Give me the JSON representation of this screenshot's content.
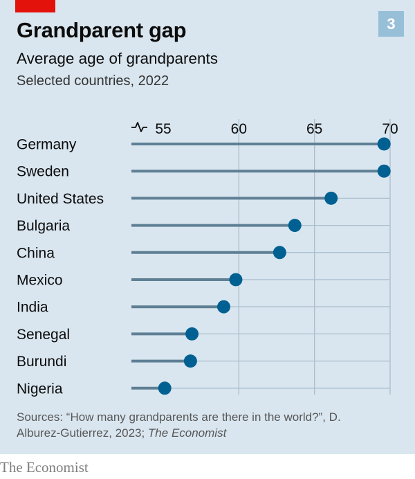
{
  "header": {
    "chart_number": "3"
  },
  "chart_data": {
    "type": "dot",
    "title": "Grandparent gap",
    "subtitle": "Average age of grandparents",
    "subsubtitle": "Selected countries, 2022",
    "categories": [
      "Germany",
      "Sweden",
      "United States",
      "Bulgaria",
      "China",
      "Mexico",
      "India",
      "Senegal",
      "Burundi",
      "Nigeria"
    ],
    "values": [
      69.6,
      69.6,
      66.1,
      63.7,
      62.7,
      59.8,
      59.0,
      56.9,
      56.8,
      55.1
    ],
    "xticks": [
      55,
      60,
      65,
      70
    ],
    "xlim": [
      53,
      70
    ],
    "grid": true,
    "axis_break": true,
    "colors": {
      "dot": "#006092",
      "stem": "#5e7f94",
      "grid": "#a9bdcb",
      "background": "#d9e6ef",
      "accent": "#e3120b"
    }
  },
  "source": {
    "prefix": "Sources: “How many grandparents are there in the world?”, D. Alburez-Gutierrez, 2023; ",
    "italic": "The Economist"
  },
  "footer": {
    "brand": "The Economist"
  }
}
